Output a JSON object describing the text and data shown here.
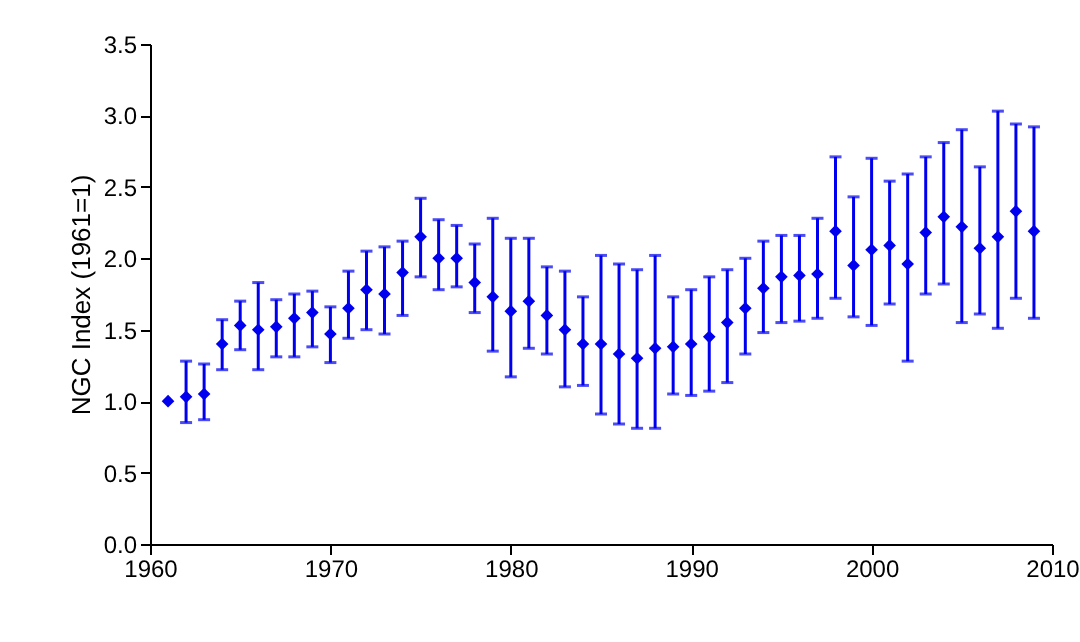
{
  "chart_data": {
    "type": "scatter",
    "ylabel": "NGC Index (1961=1)",
    "marker": "diamond",
    "legend": false,
    "grid": false,
    "x": [
      1961,
      1962,
      1963,
      1964,
      1965,
      1966,
      1967,
      1968,
      1969,
      1970,
      1971,
      1972,
      1973,
      1974,
      1975,
      1976,
      1977,
      1978,
      1979,
      1980,
      1981,
      1982,
      1983,
      1984,
      1985,
      1986,
      1987,
      1988,
      1989,
      1990,
      1991,
      1992,
      1993,
      1994,
      1995,
      1996,
      1997,
      1998,
      1999,
      2000,
      2001,
      2002,
      2003,
      2004,
      2005,
      2006,
      2007,
      2008,
      2009
    ],
    "series": [
      {
        "color": "#0000ee",
        "values": [
          1.0,
          1.03,
          1.05,
          1.4,
          1.53,
          1.5,
          1.52,
          1.58,
          1.62,
          1.47,
          1.65,
          1.78,
          1.75,
          1.9,
          2.15,
          2.0,
          2.0,
          1.83,
          1.73,
          1.63,
          1.7,
          1.6,
          1.5,
          1.4,
          1.4,
          1.33,
          1.3,
          1.37,
          1.38,
          1.4,
          1.45,
          1.55,
          1.65,
          1.79,
          1.87,
          1.88,
          1.89,
          2.19,
          1.95,
          2.06,
          2.09,
          1.96,
          2.18,
          2.29,
          2.22,
          2.07,
          2.15,
          2.33,
          2.19
        ],
        "errors": [
          null,
          [
            0.85,
            1.28
          ],
          [
            0.87,
            1.26
          ],
          [
            1.22,
            1.57
          ],
          [
            1.36,
            1.7
          ],
          [
            1.22,
            1.83
          ],
          [
            1.31,
            1.71
          ],
          [
            1.31,
            1.75
          ],
          [
            1.38,
            1.77
          ],
          [
            1.27,
            1.66
          ],
          [
            1.44,
            1.91
          ],
          [
            1.5,
            2.05
          ],
          [
            1.47,
            2.08
          ],
          [
            1.6,
            2.12
          ],
          [
            1.87,
            2.42
          ],
          [
            1.78,
            2.27
          ],
          [
            1.8,
            2.23
          ],
          [
            1.62,
            2.1
          ],
          [
            1.35,
            2.28
          ],
          [
            1.17,
            2.14
          ],
          [
            1.37,
            2.14
          ],
          [
            1.33,
            1.94
          ],
          [
            1.1,
            1.91
          ],
          [
            1.11,
            1.73
          ],
          [
            0.91,
            2.02
          ],
          [
            0.84,
            1.96
          ],
          [
            0.81,
            1.92
          ],
          [
            0.81,
            2.02
          ],
          [
            1.05,
            1.73
          ],
          [
            1.04,
            1.78
          ],
          [
            1.07,
            1.87
          ],
          [
            1.13,
            1.92
          ],
          [
            1.33,
            2.0
          ],
          [
            1.48,
            2.12
          ],
          [
            1.55,
            2.16
          ],
          [
            1.56,
            2.16
          ],
          [
            1.58,
            2.28
          ],
          [
            1.72,
            2.71
          ],
          [
            1.59,
            2.43
          ],
          [
            1.53,
            2.7
          ],
          [
            1.68,
            2.54
          ],
          [
            1.28,
            2.59
          ],
          [
            1.75,
            2.71
          ],
          [
            1.82,
            2.81
          ],
          [
            1.55,
            2.9
          ],
          [
            1.61,
            2.64
          ],
          [
            1.51,
            3.03
          ],
          [
            1.72,
            2.94
          ],
          [
            1.58,
            2.92
          ]
        ]
      }
    ],
    "xlim": [
      1960,
      2010
    ],
    "xticks": [
      1960,
      1970,
      1980,
      1990,
      2000,
      2010
    ],
    "ylim": [
      0,
      3.5
    ],
    "yticks": [
      {
        "value": 0,
        "label": "0.0"
      },
      {
        "value": 0.5,
        "label": "0.5"
      },
      {
        "value": 1,
        "label": "1.0"
      },
      {
        "value": 1.5,
        "label": "1.5"
      },
      {
        "value": 2,
        "label": "2.0"
      },
      {
        "value": 2.5,
        "label": "2.5"
      },
      {
        "value": 3,
        "label": "3.0"
      },
      {
        "value": 3.5,
        "label": "3.5"
      }
    ]
  }
}
